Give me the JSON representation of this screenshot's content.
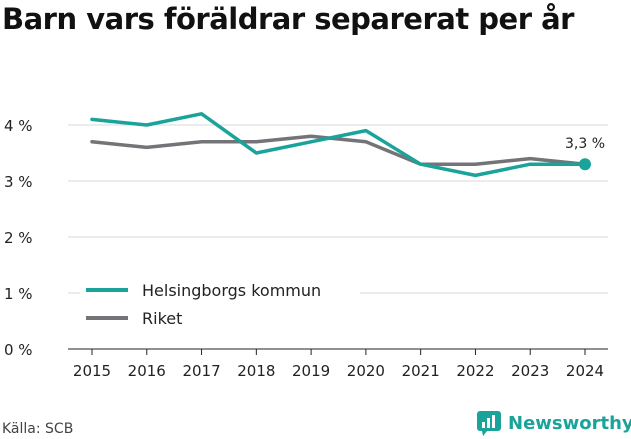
{
  "chart_data": {
    "type": "line",
    "title": "Barn vars föräldrar separerat per år",
    "x": [
      "2015",
      "2016",
      "2017",
      "2018",
      "2019",
      "2020",
      "2021",
      "2022",
      "2023",
      "2024"
    ],
    "series": [
      {
        "name": "Helsingborgs kommun",
        "color": "#1aa39a",
        "values": [
          4.1,
          4.0,
          4.2,
          3.5,
          3.7,
          3.9,
          3.3,
          3.1,
          3.3,
          3.3
        ]
      },
      {
        "name": "Riket",
        "color": "#747378",
        "values": [
          3.7,
          3.6,
          3.7,
          3.7,
          3.8,
          3.7,
          3.3,
          3.3,
          3.4,
          3.3
        ]
      }
    ],
    "ylim": [
      0,
      4
    ],
    "yticks": [
      {
        "value": 0,
        "label": "0 %"
      },
      {
        "value": 1,
        "label": "1 %"
      },
      {
        "value": 2,
        "label": "2 %"
      },
      {
        "value": 3,
        "label": "3 %"
      },
      {
        "value": 4,
        "label": "4 %"
      }
    ],
    "grid": true,
    "legend_position": "bottom-left",
    "end_label": "3,3 %",
    "xlabel": "",
    "ylabel": ""
  },
  "source": "Källa: SCB",
  "brand": {
    "name": "Newsworthy",
    "color": "#1aa39a"
  }
}
